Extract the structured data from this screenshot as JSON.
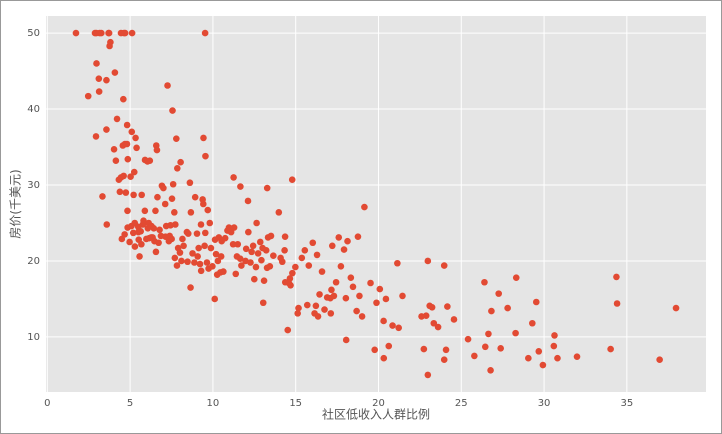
{
  "chart_data": {
    "type": "scatter",
    "x_label": "社区低收入人群比例",
    "y_label": "房价(千美元)",
    "color": "#E24A33",
    "grid": true,
    "xlim": [
      -0.08,
      39.78
    ],
    "ylim": [
      2.75,
      52.25
    ],
    "xticks": [
      0,
      5,
      10,
      15,
      20,
      25,
      30,
      35
    ],
    "yticks": [
      10,
      20,
      30,
      40,
      50
    ],
    "x": [
      1.73,
      2.88,
      2.96,
      3.16,
      3.26,
      3.7,
      3.73,
      4.45,
      4.63,
      4.7,
      5.12,
      9.53,
      2.47,
      2.94,
      2.97,
      3.11,
      3.13,
      3.33,
      3.57,
      3.57,
      3.59,
      3.76,
      3.81,
      4.03,
      4.08,
      4.14,
      4.21,
      4.32,
      4.38,
      4.45,
      4.5,
      4.56,
      4.59,
      4.61,
      4.67,
      4.69,
      4.74,
      4.81,
      4.82,
      4.84,
      4.85,
      4.86,
      4.97,
      5.03,
      5.08,
      5.1,
      5.19,
      5.21,
      5.25,
      5.28,
      5.29,
      5.33,
      5.39,
      5.49,
      5.5,
      5.52,
      5.57,
      5.64,
      5.68,
      5.7,
      5.77,
      5.81,
      5.89,
      5.9,
      5.98,
      6.05,
      6.07,
      6.12,
      6.15,
      6.19,
      6.27,
      6.29,
      6.36,
      6.43,
      6.47,
      6.53,
      6.56,
      6.58,
      6.62,
      6.65,
      6.72,
      6.78,
      6.86,
      6.92,
      7.01,
      7.12,
      7.14,
      7.18,
      7.26,
      7.34,
      7.39,
      7.44,
      7.51,
      7.53,
      7.56,
      7.6,
      7.67,
      7.7,
      7.73,
      7.79,
      7.83,
      7.85,
      7.9,
      8.01,
      8.05,
      8.1,
      8.16,
      8.23,
      8.43,
      8.47,
      8.51,
      8.61,
      8.65,
      8.67,
      8.77,
      8.88,
      8.93,
      9.04,
      9.08,
      9.14,
      9.22,
      9.28,
      9.29,
      9.38,
      9.42,
      9.43,
      9.5,
      9.54,
      9.55,
      9.64,
      9.69,
      9.74,
      9.81,
      9.88,
      9.97,
      10.11,
      10.13,
      10.19,
      10.26,
      10.3,
      10.36,
      10.45,
      10.5,
      10.53,
      10.63,
      10.74,
      10.88,
      10.97,
      11.1,
      11.22,
      11.25,
      11.28,
      11.38,
      11.45,
      11.5,
      11.65,
      11.66,
      11.72,
      11.97,
      12.01,
      12.12,
      12.14,
      12.27,
      12.34,
      12.43,
      12.5,
      12.6,
      12.64,
      12.73,
      12.86,
      12.93,
      13,
      13.04,
      13.09,
      13.22,
      13.27,
      13.28,
      13.33,
      13.44,
      13.51,
      13.65,
      13.98,
      14.09,
      14.19,
      14.33,
      14.36,
      14.37,
      14.52,
      14.59,
      14.65,
      14.69,
      14.79,
      14.8,
      14.98,
      15.12,
      15.17,
      15.37,
      15.55,
      15.7,
      15.79,
      16.03,
      16.14,
      16.22,
      16.29,
      16.35,
      16.44,
      16.59,
      16.74,
      16.9,
      17.09,
      17.12,
      17.16,
      17.21,
      17.31,
      17.44,
      17.6,
      17.73,
      17.92,
      18.03,
      18.05,
      18.13,
      18.33,
      18.46,
      18.68,
      18.76,
      18.85,
      19.01,
      19.15,
      19.52,
      19.77,
      19.88,
      20.08,
      20.31,
      20.32,
      20.45,
      20.62,
      20.85,
      21.14,
      21.22,
      21.45,
      22.6,
      22.74,
      22.88,
      22.98,
      23.09,
      23.24,
      23.34,
      23.6,
      23.97,
      24.08,
      24.16,
      24.56,
      25.41,
      25.79,
      26.4,
      26.45,
      26.64,
      26.77,
      26.82,
      27.26,
      27.38,
      27.8,
      28.28,
      28.32,
      29.05,
      29.29,
      29.53,
      29.68,
      29.93,
      30.59,
      30.63,
      30.81,
      31.99,
      34.02,
      34.37,
      34.41,
      36.98,
      37.97,
      23.97,
      22.98
    ],
    "values": [
      50,
      50,
      50,
      50,
      50,
      50,
      50,
      50,
      50,
      50,
      50,
      50,
      41.7,
      36.4,
      46,
      44,
      42.3,
      28.5,
      43.8,
      37.3,
      24.8,
      48.3,
      48.8,
      34.7,
      44.8,
      33.2,
      38.7,
      30.7,
      29.1,
      31,
      22.9,
      35.2,
      41.3,
      31.2,
      23.5,
      35.4,
      29,
      35.4,
      37.9,
      26.6,
      24.4,
      33.4,
      22.5,
      31.1,
      24.6,
      37,
      23.7,
      28.7,
      31.7,
      25,
      21.9,
      36.2,
      34.9,
      24.5,
      23.8,
      22.8,
      20.6,
      23.9,
      22.2,
      28.7,
      24.8,
      25.3,
      26.6,
      33.3,
      22.9,
      33.1,
      24.3,
      25,
      23,
      33.2,
      23.1,
      24.6,
      23.1,
      24.3,
      22.6,
      26.6,
      21.2,
      35.2,
      34.6,
      28.4,
      22.4,
      24.1,
      23.3,
      29.9,
      29.6,
      27.5,
      23.2,
      24.6,
      43.1,
      22.6,
      23.3,
      24.7,
      22.9,
      28.2,
      39.8,
      30.1,
      26.4,
      20.4,
      24.8,
      36.1,
      19.4,
      32.2,
      21.7,
      21.1,
      33,
      20,
      22.9,
      22,
      23.8,
      19.9,
      23.6,
      30.3,
      16.5,
      26.4,
      21,
      19.8,
      28.4,
      23.6,
      20.6,
      21.7,
      19.6,
      24.8,
      18.7,
      28.1,
      27.5,
      36.2,
      22,
      23.7,
      33.8,
      19.8,
      26.7,
      19,
      25,
      21.7,
      19.3,
      15,
      22.8,
      20.9,
      18.2,
      20,
      23.1,
      18.5,
      20.6,
      22.6,
      18.6,
      23,
      24,
      24.4,
      23.8,
      22.2,
      31,
      24.4,
      18.3,
      20.6,
      22.2,
      20.3,
      29.8,
      19.4,
      20,
      21.6,
      27.9,
      23.8,
      19.8,
      21.2,
      22,
      17.6,
      19.2,
      25,
      21,
      22.5,
      20.1,
      21.7,
      14.5,
      17.4,
      21.4,
      19.1,
      29.6,
      23.1,
      19.3,
      23.3,
      20.7,
      26.4,
      20.4,
      19.9,
      21.4,
      23.2,
      17.2,
      10.9,
      17.1,
      17.7,
      16.8,
      30.7,
      18.4,
      19.2,
      13.1,
      13.8,
      20.4,
      21.4,
      14.2,
      19.4,
      22.4,
      13.1,
      14.1,
      20.8,
      12.7,
      15.6,
      18.6,
      13.6,
      15.2,
      15.1,
      13.1,
      16.2,
      22,
      15.4,
      17.2,
      23.1,
      19.3,
      21.5,
      15.1,
      9.6,
      22.6,
      17.8,
      16.6,
      13.4,
      23.2,
      15.4,
      12.7,
      27.1,
      17.1,
      8.3,
      14.5,
      16.3,
      12.1,
      7.2,
      15,
      8.8,
      11.5,
      19.7,
      11.2,
      15.4,
      12.7,
      8.4,
      12.8,
      5,
      14.1,
      13.9,
      11.8,
      11.3,
      7,
      8.3,
      14,
      12.3,
      9.7,
      7.5,
      17.2,
      8.7,
      10.4,
      5.6,
      13.4,
      15.7,
      8.5,
      13.8,
      10.5,
      17.8,
      7.2,
      11.8,
      14.6,
      8.1,
      6.3,
      8.8,
      10.2,
      7.2,
      7.4,
      8.4,
      17.9,
      14.4,
      7,
      13.8,
      19.4,
      20
    ]
  }
}
